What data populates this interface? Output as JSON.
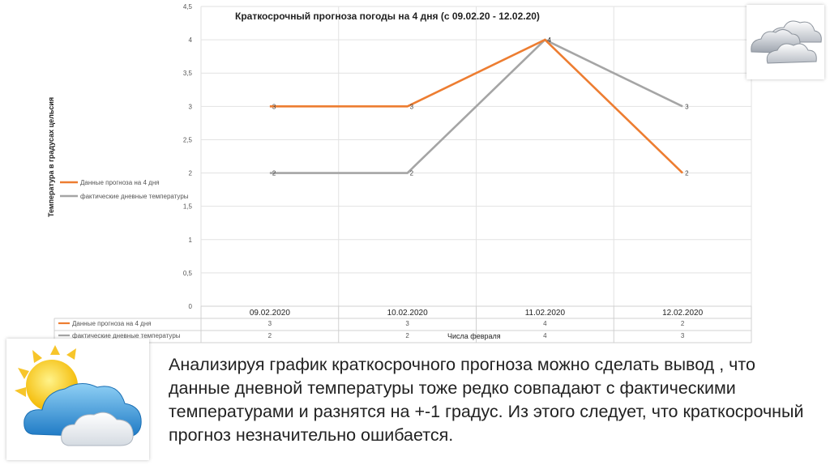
{
  "chart_data": {
    "type": "line",
    "title": "Краткосрочный прогноза погоды на 4 дня (с 09.02.20 - 12.02.20)",
    "xlabel": "Числа февраля",
    "ylabel": "Температура в градусах цельсия",
    "categories": [
      "09.02.2020",
      "10.02.2020",
      "11.02.2020",
      "12.02.2020"
    ],
    "y_ticks": [
      "0",
      "0,5",
      "1",
      "1,5",
      "2",
      "2,5",
      "3",
      "3,5",
      "4",
      "4,5"
    ],
    "ylim": [
      0,
      4.5
    ],
    "grid": true,
    "legend_position": "left",
    "data_table": true,
    "series": [
      {
        "name": "Данные прогноза на 4 дня",
        "values": [
          3,
          3,
          4,
          2
        ],
        "color": "#ED7D31"
      },
      {
        "name": "фактические дневные температуры",
        "values": [
          2,
          2,
          4,
          3
        ],
        "color": "#A5A5A5"
      }
    ]
  },
  "conclusion": "Анализируя график краткосрочного прогноза можно сделать вывод , что данные дневной температуры тоже редко совпадают с фактическими температурами и разнятся на +-1 градус. Из этого следует, что краткосрочный прогноз незначительно ошибается.",
  "icons": {
    "top_right": "clouds-icon",
    "bottom_left": "sun-behind-cloud-icon"
  }
}
